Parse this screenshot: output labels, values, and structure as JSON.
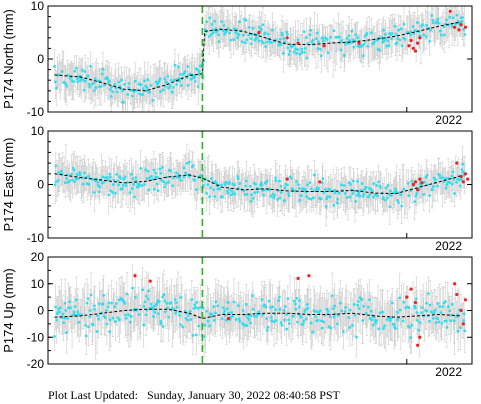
{
  "footer": {
    "label": "Plot Last Updated:",
    "value": "Sunday, January 30, 2022 08:40:58 PST"
  },
  "chart_data": [
    {
      "type": "scatter",
      "panel": "north",
      "ylabel": "P174 North (mm)",
      "ylim": [
        -10,
        10
      ],
      "yticks": [
        "10",
        "0",
        "-10"
      ],
      "xtick_label": "2022",
      "xlim": [
        2020.35,
        2022.3
      ],
      "event_line_x": 2021.06,
      "event_line_color": "#22bb22",
      "grid": false,
      "colors": {
        "rapid": "#33ddee",
        "recent": "#ee2222",
        "errorbar": "#cccccc",
        "trend": "#000000"
      },
      "series": [
        {
          "kind": "trend",
          "x": [
            2020.38,
            2020.5,
            2020.6,
            2020.7,
            2020.8,
            2020.9,
            2021.0,
            2021.06,
            2021.07,
            2021.15,
            2021.25,
            2021.35,
            2021.45,
            2021.55,
            2021.65,
            2021.75,
            2021.85,
            2021.95,
            2022.05,
            2022.15,
            2022.25
          ],
          "y": [
            -3,
            -3.4,
            -4.5,
            -5.7,
            -6,
            -4.8,
            -3.1,
            -2.8,
            5.2,
            5.6,
            5.2,
            4.0,
            2.8,
            2.7,
            3.0,
            3.2,
            3.7,
            4.3,
            5.2,
            6.2,
            7.0
          ]
        },
        {
          "kind": "recent",
          "x": [
            2021.32,
            2021.45,
            2021.5,
            2021.62,
            2021.78,
            2022.01,
            2022.02,
            2022.03,
            2022.04,
            2022.05,
            2022.06,
            2022.2,
            2022.22,
            2022.24,
            2022.25,
            2022.27
          ],
          "y": [
            5,
            4,
            3,
            2.5,
            3,
            2.5,
            3.5,
            2,
            1.5,
            3,
            4,
            9,
            6,
            5.5,
            6.5,
            6
          ]
        }
      ]
    },
    {
      "type": "scatter",
      "panel": "east",
      "ylabel": "P174 East (mm)",
      "ylim": [
        -10,
        10
      ],
      "yticks": [
        "10",
        "0",
        "-10"
      ],
      "xtick_label": "2022",
      "xlim": [
        2020.35,
        2022.3
      ],
      "event_line_x": 2021.06,
      "event_line_color": "#22bb22",
      "grid": false,
      "colors": {
        "rapid": "#33ddee",
        "recent": "#ee2222",
        "errorbar": "#cccccc",
        "trend": "#000000"
      },
      "series": [
        {
          "kind": "trend",
          "x": [
            2020.38,
            2020.5,
            2020.6,
            2020.7,
            2020.8,
            2020.9,
            2021.0,
            2021.06,
            2021.15,
            2021.25,
            2021.35,
            2021.45,
            2021.55,
            2021.65,
            2021.75,
            2021.85,
            2021.95,
            2022.05,
            2022.15,
            2022.25
          ],
          "y": [
            2.0,
            1.3,
            0.8,
            0.3,
            0.6,
            1.4,
            1.8,
            1.2,
            -0.5,
            -1.0,
            -0.8,
            -1.2,
            -1.3,
            -1.3,
            -1.1,
            -1.6,
            -1.7,
            -0.6,
            0.5,
            1.6
          ]
        },
        {
          "kind": "recent",
          "x": [
            2021.45,
            2021.6,
            2022.03,
            2022.04,
            2022.05,
            2022.06,
            2022.07,
            2022.23,
            2022.25,
            2022.26,
            2022.27,
            2022.28
          ],
          "y": [
            1,
            0.5,
            0,
            0.5,
            -1,
            1,
            0.3,
            4,
            1.5,
            0.5,
            2,
            1
          ]
        }
      ]
    },
    {
      "type": "scatter",
      "panel": "up",
      "ylabel": "P174 Up (mm)",
      "ylim": [
        -20,
        20
      ],
      "yticks": [
        "20",
        "10",
        "0",
        "-10",
        "-20"
      ],
      "xtick_label": "2022",
      "xlim": [
        2020.35,
        2022.3
      ],
      "event_line_x": 2021.06,
      "event_line_color": "#22bb22",
      "grid": false,
      "colors": {
        "rapid": "#33ddee",
        "recent": "#ee2222",
        "errorbar": "#cccccc",
        "trend": "#000000"
      },
      "series": [
        {
          "kind": "trend",
          "x": [
            2020.38,
            2020.5,
            2020.6,
            2020.7,
            2020.8,
            2020.9,
            2021.0,
            2021.06,
            2021.15,
            2021.25,
            2021.35,
            2021.45,
            2021.55,
            2021.65,
            2021.75,
            2021.85,
            2021.95,
            2022.05,
            2022.15,
            2022.25
          ],
          "y": [
            -2.5,
            -2.0,
            -1.0,
            0.0,
            0.5,
            0.5,
            -1.0,
            -3.0,
            -1.5,
            -1.5,
            -1.0,
            -1.0,
            -1.5,
            -1.5,
            -1.0,
            -2.0,
            -2.5,
            -2.0,
            -1.5,
            -2.0
          ]
        },
        {
          "kind": "recent",
          "x": [
            2020.75,
            2020.82,
            2021.18,
            2021.5,
            2021.55,
            2022.0,
            2022.02,
            2022.04,
            2022.05,
            2022.06,
            2022.22,
            2022.23,
            2022.25,
            2022.26,
            2022.27
          ],
          "y": [
            13,
            11,
            -3,
            12,
            13,
            5,
            8,
            3,
            -13,
            -10,
            10,
            6,
            0,
            -5,
            4
          ]
        }
      ]
    }
  ]
}
